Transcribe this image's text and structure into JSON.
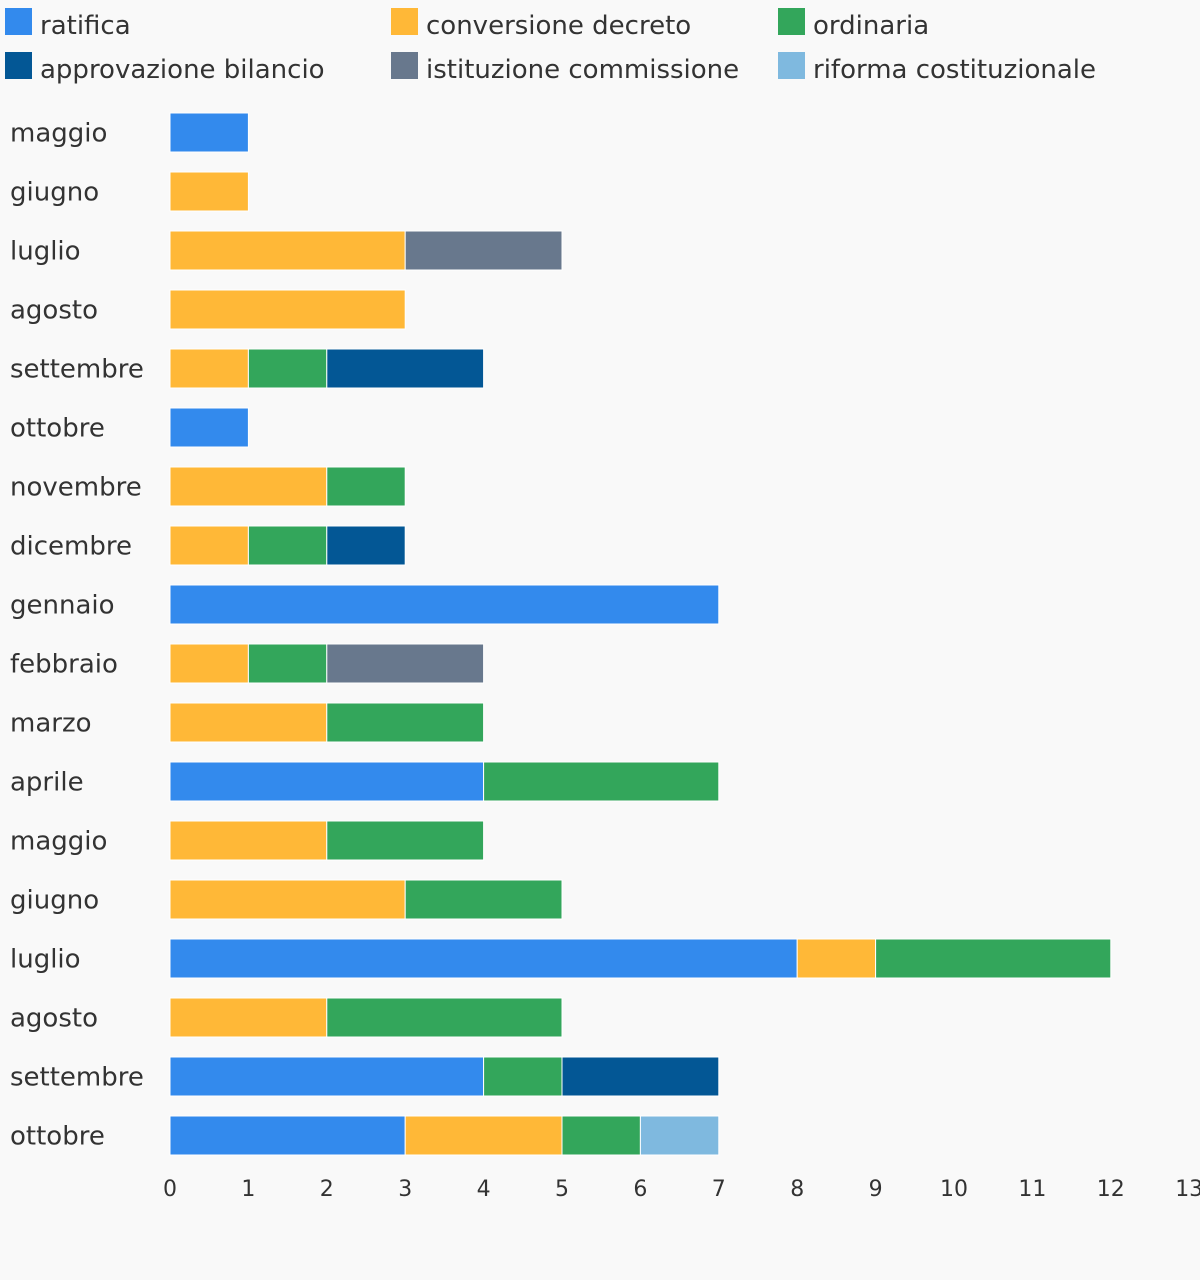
{
  "chart_data": {
    "type": "bar",
    "orientation": "horizontal",
    "stacked": true,
    "categories": [
      "maggio",
      "giugno",
      "luglio",
      "agosto",
      "settembre",
      "ottobre",
      "novembre",
      "dicembre",
      "gennaio",
      "febbraio",
      "marzo",
      "aprile",
      "maggio",
      "giugno",
      "luglio",
      "agosto",
      "settembre",
      "ottobre"
    ],
    "series": [
      {
        "name": "ratifica",
        "color": "#338aed",
        "values": [
          1,
          0,
          0,
          0,
          0,
          1,
          0,
          0,
          7,
          0,
          0,
          4,
          0,
          0,
          8,
          0,
          4,
          3
        ]
      },
      {
        "name": "conversione decreto",
        "color": "#ffb837",
        "values": [
          0,
          1,
          3,
          3,
          1,
          0,
          2,
          1,
          0,
          1,
          2,
          0,
          2,
          3,
          1,
          2,
          0,
          2
        ]
      },
      {
        "name": "ordinaria",
        "color": "#33a65b",
        "values": [
          0,
          0,
          0,
          0,
          1,
          0,
          1,
          1,
          0,
          1,
          2,
          3,
          2,
          2,
          3,
          3,
          1,
          1
        ]
      },
      {
        "name": "approvazione bilancio",
        "color": "#035795",
        "values": [
          0,
          0,
          0,
          0,
          2,
          0,
          0,
          1,
          0,
          0,
          0,
          0,
          0,
          0,
          0,
          0,
          2,
          0
        ]
      },
      {
        "name": "istituzione commissione",
        "color": "#68788d",
        "values": [
          0,
          0,
          2,
          0,
          0,
          0,
          0,
          0,
          0,
          2,
          0,
          0,
          0,
          0,
          0,
          0,
          0,
          0
        ]
      },
      {
        "name": "riforma costituzionale",
        "color": "#7fb9df",
        "values": [
          0,
          0,
          0,
          0,
          0,
          0,
          0,
          0,
          0,
          0,
          0,
          0,
          0,
          0,
          0,
          0,
          0,
          1
        ]
      }
    ],
    "xlim": [
      0,
      13
    ],
    "xticks": [
      0,
      1,
      2,
      3,
      4,
      5,
      6,
      7,
      8,
      9,
      10,
      11,
      12,
      13
    ],
    "title": "",
    "xlabel": "",
    "ylabel": "",
    "legend_position": "top",
    "grid": false
  }
}
